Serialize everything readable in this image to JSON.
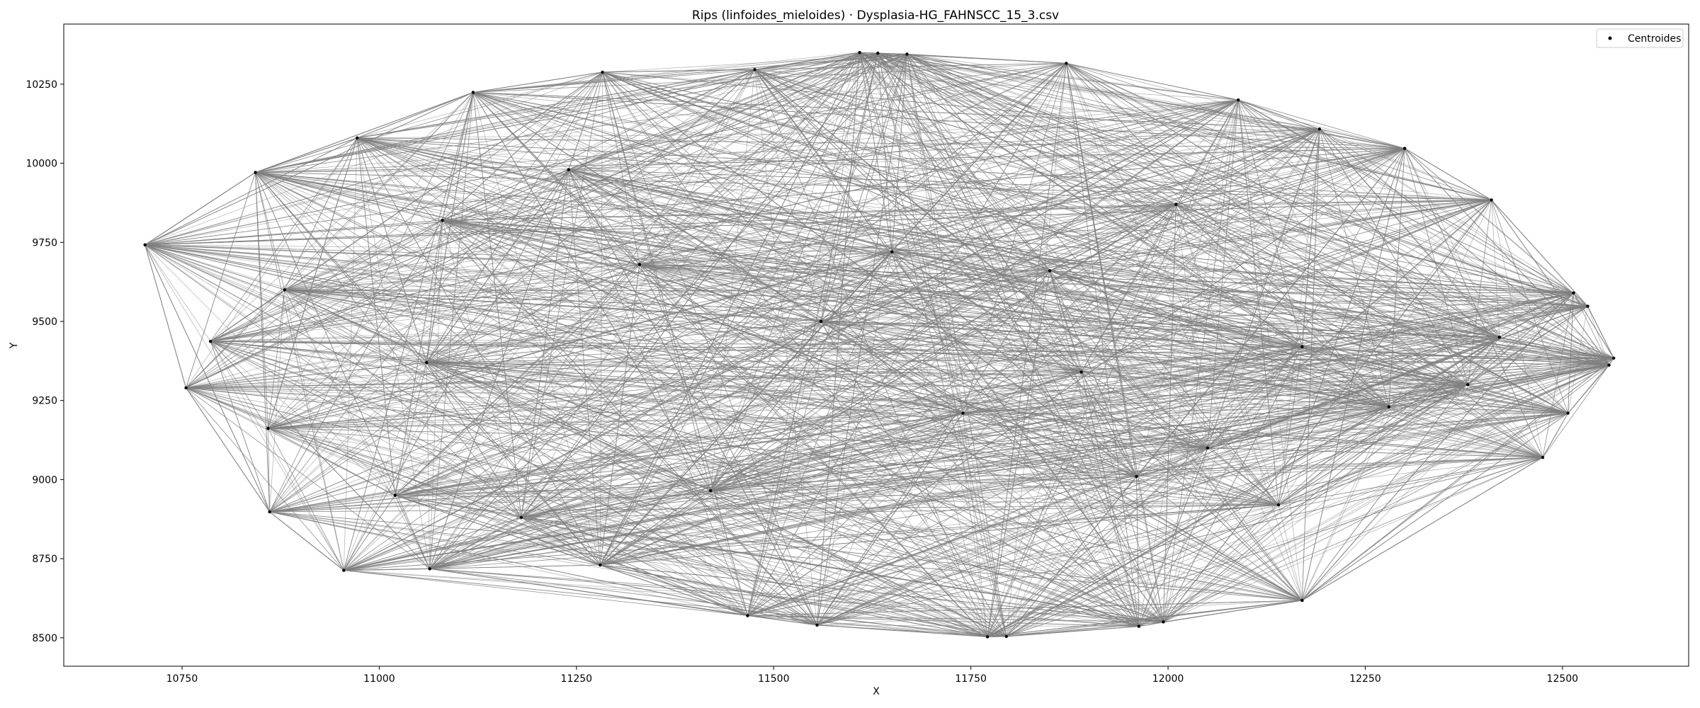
{
  "chart_data": {
    "type": "scatter",
    "title": "Rips (linfoides_mieloides) · Dysplasia-HG_FAHNSCC_15_3.csv",
    "xlabel": "X",
    "ylabel": "Y",
    "xlim": [
      10600,
      12660
    ],
    "ylim": [
      8410,
      10440
    ],
    "xticks": [
      10750,
      11000,
      11250,
      11500,
      11750,
      12000,
      12250,
      12500
    ],
    "yticks": [
      8500,
      8750,
      9000,
      9250,
      9500,
      9750,
      10000,
      10250
    ],
    "grid": false,
    "legend_position": "upper-right",
    "series": [
      {
        "name": "Centroides",
        "color": "#000000",
        "edge_color": "#808080",
        "x": [
          10703,
          10755,
          10786,
          10843,
          10859,
          10861,
          10955,
          10972,
          11064,
          11119,
          11283,
          11467,
          11476,
          11555,
          11609,
          11632,
          11669,
          11771,
          11795,
          11871,
          11963,
          11994,
          12089,
          12170,
          12192,
          12300,
          12410,
          12475,
          12507,
          12514,
          12532,
          12559,
          12565,
          11020,
          11060,
          11180,
          11420,
          11280,
          11890,
          11740,
          12050,
          11960,
          12380,
          12420,
          12280,
          12170,
          11560,
          11330,
          11080,
          10880,
          11850,
          11650,
          12140,
          11240,
          12010
        ],
        "y": [
          9742,
          9290,
          9437,
          9971,
          9162,
          8898,
          8713,
          10080,
          8718,
          10224,
          10288,
          8570,
          10296,
          8540,
          10350,
          10348,
          10345,
          8503,
          8504,
          10316,
          8536,
          8550,
          10200,
          8618,
          10108,
          10047,
          9884,
          9070,
          9210,
          9590,
          9548,
          9362,
          9384,
          8950,
          9370,
          8880,
          8965,
          8730,
          9340,
          9210,
          9100,
          9010,
          9300,
          9450,
          9230,
          9420,
          9500,
          9680,
          9820,
          9600,
          9660,
          9720,
          8920,
          9980,
          9870
        ]
      }
    ],
    "edge_count": 2600
  }
}
